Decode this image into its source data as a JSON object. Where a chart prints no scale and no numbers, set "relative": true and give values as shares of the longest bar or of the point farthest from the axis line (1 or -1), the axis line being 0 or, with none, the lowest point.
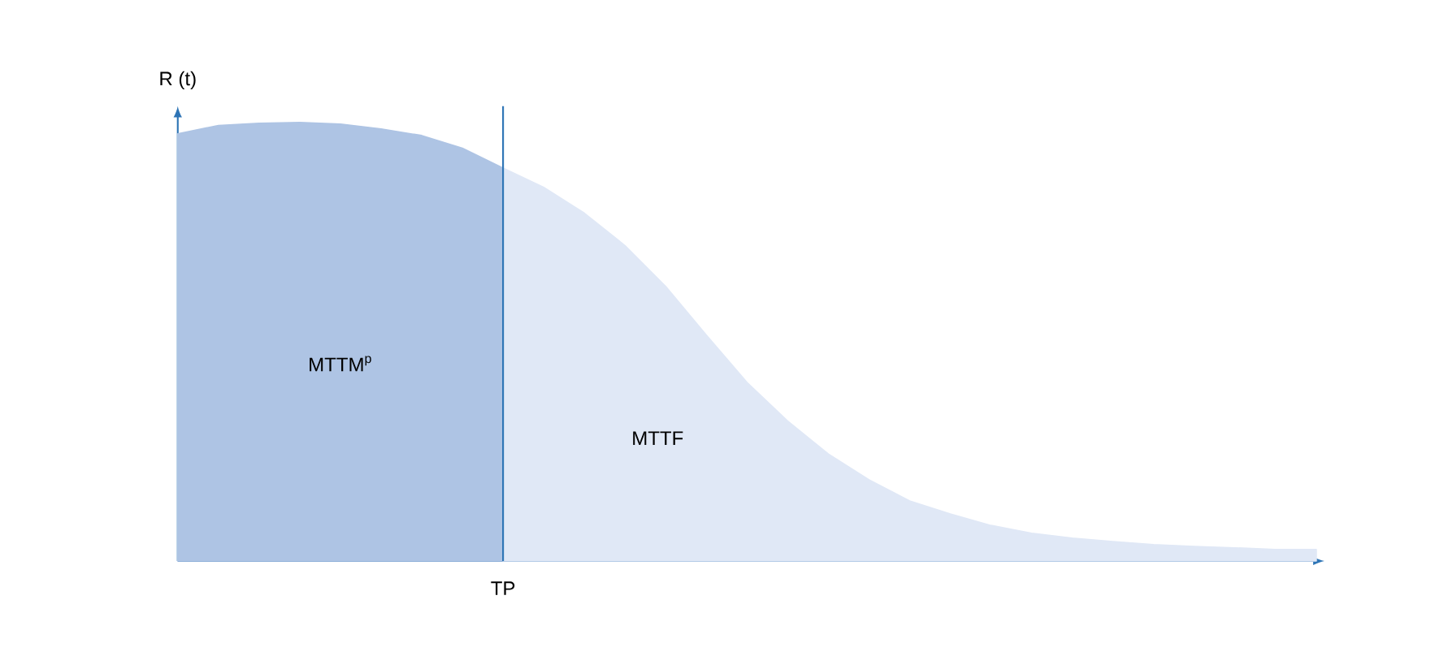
{
  "chart_data": {
    "type": "area",
    "relative": true,
    "ylabel": "R (t)",
    "categories": [
      null,
      null,
      null,
      null,
      null,
      null,
      null,
      null,
      null,
      null,
      null,
      null,
      null,
      null,
      null,
      null,
      null,
      null,
      null,
      null,
      null,
      null,
      null,
      null,
      null,
      null,
      null,
      null,
      null
    ],
    "series": [
      {
        "color": "#aec4e4",
        "values": [
          0.974,
          0.993,
          0.998,
          1,
          0.996,
          0.985,
          0.97,
          0.941,
          0.896,
          null,
          null,
          null,
          null,
          null,
          null,
          null,
          null,
          null,
          null,
          null,
          null,
          null,
          null,
          null,
          null,
          null,
          null,
          null,
          null
        ]
      },
      {
        "color": "#e0e8f6",
        "values": [
          null,
          null,
          null,
          null,
          null,
          null,
          null,
          null,
          0.896,
          0.852,
          0.793,
          0.719,
          0.626,
          0.515,
          0.407,
          0.319,
          0.244,
          0.185,
          0.137,
          0.107,
          0.081,
          0.063,
          0.052,
          0.044,
          0.037,
          0.033,
          0.03,
          0.026,
          0.026
        ]
      }
    ],
    "annotations": [
      "MTTM$^{p}$",
      "MTTF",
      "TP"
    ]
  }
}
